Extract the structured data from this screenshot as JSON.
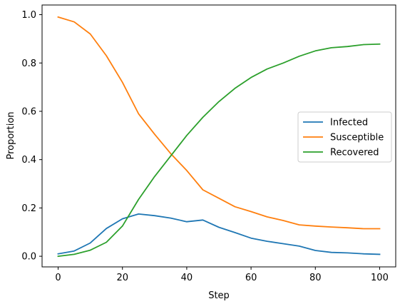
{
  "chart_data": {
    "type": "line",
    "xlabel": "Step",
    "ylabel": "Proportion",
    "xlim": [
      -5,
      105
    ],
    "ylim": [
      -0.044,
      1.04
    ],
    "xticks": [
      "0",
      "20",
      "40",
      "60",
      "80",
      "100"
    ],
    "yticks": [
      "0.0",
      "0.2",
      "0.4",
      "0.6",
      "0.8",
      "1.0"
    ],
    "grid": false,
    "legend_position": "center-right",
    "x": [
      0,
      5,
      10,
      15,
      20,
      25,
      30,
      35,
      40,
      45,
      50,
      55,
      60,
      65,
      70,
      75,
      80,
      85,
      90,
      95,
      100
    ],
    "series": [
      {
        "name": "Infected",
        "color": "#1f77b4",
        "values": [
          0.01,
          0.022,
          0.055,
          0.115,
          0.155,
          0.175,
          0.168,
          0.158,
          0.143,
          0.15,
          0.12,
          0.098,
          0.075,
          0.062,
          0.052,
          0.042,
          0.024,
          0.016,
          0.014,
          0.01,
          0.008
        ]
      },
      {
        "name": "Susceptible",
        "color": "#ff7f0e",
        "values": [
          0.99,
          0.97,
          0.92,
          0.83,
          0.72,
          0.59,
          0.505,
          0.425,
          0.355,
          0.275,
          0.24,
          0.205,
          0.185,
          0.163,
          0.148,
          0.13,
          0.125,
          0.121,
          0.118,
          0.114,
          0.114
        ]
      },
      {
        "name": "Recovered",
        "color": "#2ca02c",
        "values": [
          0.0,
          0.008,
          0.025,
          0.058,
          0.125,
          0.235,
          0.33,
          0.415,
          0.5,
          0.575,
          0.64,
          0.695,
          0.74,
          0.775,
          0.8,
          0.828,
          0.85,
          0.863,
          0.868,
          0.876,
          0.878
        ]
      }
    ]
  }
}
